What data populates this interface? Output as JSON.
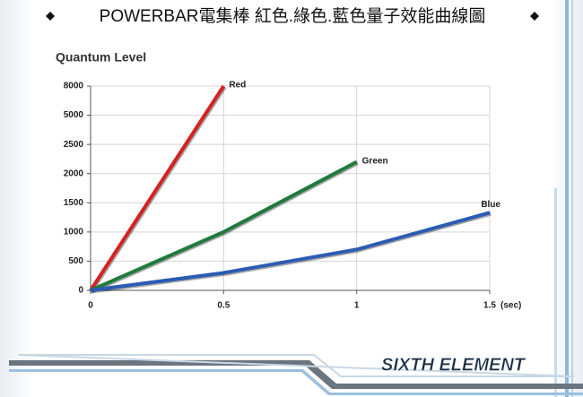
{
  "chart_data": {
    "type": "line",
    "title": "POWERBAR電集棒 紅色.綠色.藍色量子效能曲線圖",
    "y_label": "Quantum Level",
    "x_label": "(sec)",
    "x": [
      0,
      0.5,
      1,
      1.5
    ],
    "series": [
      {
        "name": "Red",
        "color": "#d42121",
        "values": [
          0,
          8000,
          null,
          null
        ]
      },
      {
        "name": "Green",
        "color": "#1f7a3c",
        "values": [
          0,
          1000,
          2200,
          null
        ]
      },
      {
        "name": "Blue",
        "color": "#2b5cb3",
        "values": [
          0,
          300,
          700,
          1330
        ]
      }
    ],
    "xlim": [
      0,
      1.5
    ],
    "xticks": [
      0,
      0.5,
      1,
      1.5
    ],
    "ylim": [
      0,
      8000
    ],
    "yticks": [
      0,
      500,
      1000,
      1500,
      2000,
      2500,
      5000,
      8000
    ],
    "grid": true
  },
  "brand": "SIXTH ELEMENT"
}
